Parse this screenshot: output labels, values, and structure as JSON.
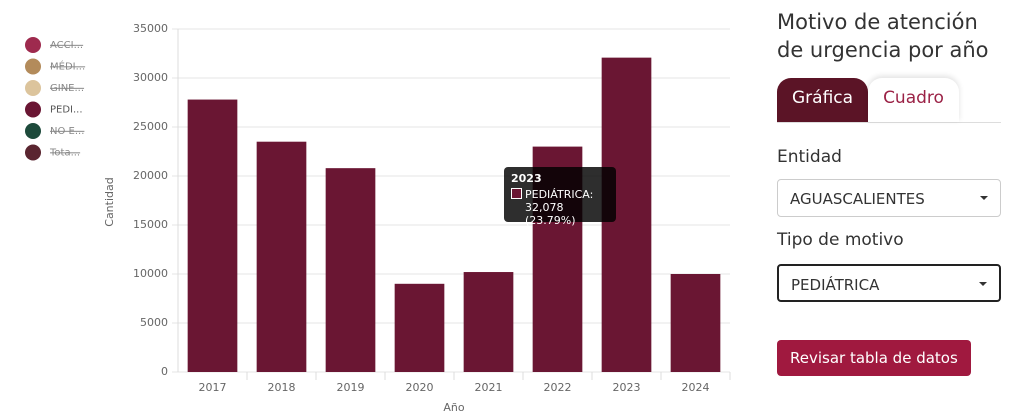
{
  "chart_data": {
    "type": "bar",
    "x_label": "Año",
    "y_label": "Cantidad",
    "categories": [
      "2017",
      "2018",
      "2019",
      "2020",
      "2021",
      "2022",
      "2023",
      "2024"
    ],
    "series": [
      {
        "name": "PEDIÁTRICA",
        "color": "#6a1633",
        "values": [
          27800,
          23500,
          20800,
          9000,
          10200,
          23000,
          32078,
          10000
        ]
      }
    ],
    "ylim": [
      0,
      35000
    ],
    "yticks": [
      0,
      5000,
      10000,
      15000,
      20000,
      25000,
      30000,
      35000
    ],
    "grid": true,
    "legend": [
      {
        "label": "ACCI...",
        "color": "#9e2a4e",
        "hidden": true
      },
      {
        "label": "MÉDI...",
        "color": "#b38b5b",
        "hidden": true
      },
      {
        "label": "GINE...",
        "color": "#dcc49c",
        "hidden": true
      },
      {
        "label": "PEDI...",
        "color": "#6a1633",
        "hidden": false
      },
      {
        "label": "NO E...",
        "color": "#1d4a3b",
        "hidden": true
      },
      {
        "label": "Tota...",
        "color": "#5a2530",
        "hidden": true
      }
    ],
    "tooltip": {
      "title": "2023",
      "series": "PEDIÁTRICA:",
      "value_label": "32,078 (23.79%)"
    }
  },
  "panel": {
    "title": "Motivo de atención de urgencia por año",
    "tabs": [
      "Gráfica",
      "Cuadro"
    ],
    "entity_label": "Entidad",
    "entity": "AGUASCALIENTES",
    "type_label": "Tipo de motivo",
    "type": "PEDIÁTRICA",
    "button": "Revisar tabla de datos"
  }
}
